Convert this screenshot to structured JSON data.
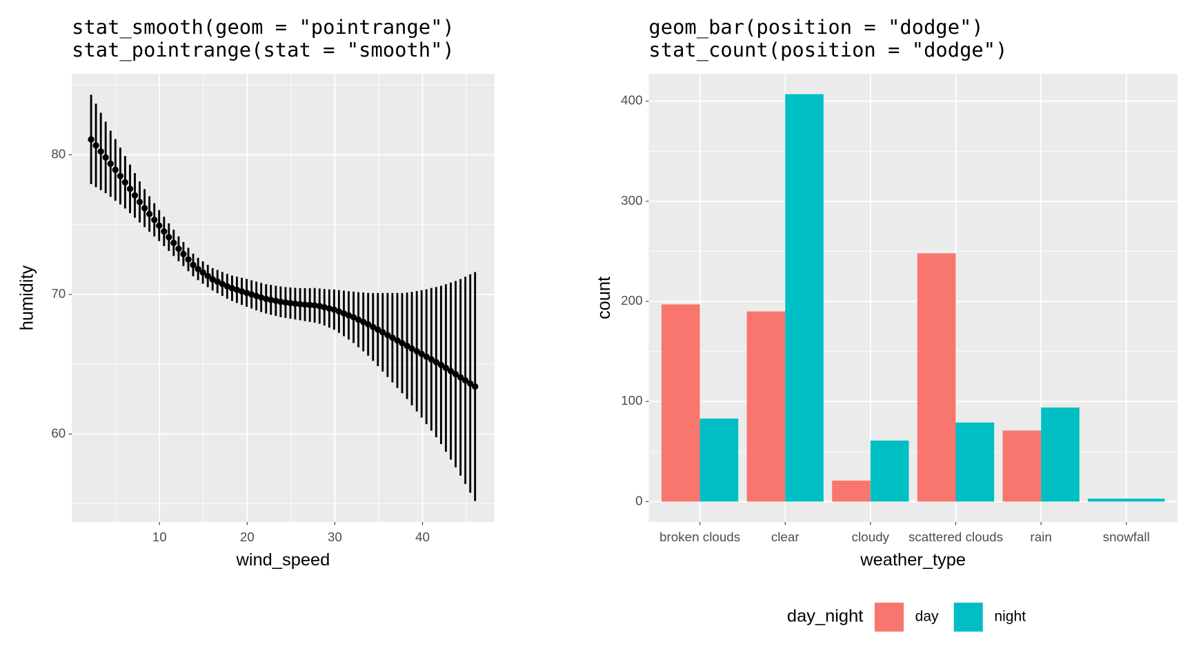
{
  "chart_data": [
    {
      "type": "pointrange",
      "title": [
        "stat_smooth(geom = \"pointrange\")",
        "stat_pointrange(stat = \"smooth\")"
      ],
      "x_label": "wind_speed",
      "y_label": "humidity",
      "color": "#000000",
      "xlim": [
        0,
        48.2
      ],
      "ylim": [
        53.7,
        85.8
      ],
      "xticks": [
        10,
        20,
        30,
        40
      ],
      "yticks": [
        60,
        70,
        80
      ],
      "minor_xticks": [
        5,
        15,
        25,
        35,
        45
      ],
      "minor_yticks": [
        55,
        65,
        75,
        85
      ],
      "grid": true,
      "x": [
        2.2,
        2.75,
        3.31,
        3.86,
        4.42,
        4.97,
        5.53,
        6.08,
        6.64,
        7.19,
        7.74,
        8.3,
        8.85,
        9.41,
        9.96,
        10.52,
        11.07,
        11.62,
        12.18,
        12.73,
        13.29,
        13.84,
        14.4,
        14.95,
        15.51,
        16.06,
        16.61,
        17.17,
        17.72,
        18.28,
        18.83,
        19.39,
        19.94,
        20.5,
        21.05,
        21.6,
        22.16,
        22.71,
        23.27,
        23.82,
        24.38,
        24.93,
        25.48,
        26.04,
        26.59,
        27.15,
        27.7,
        28.26,
        28.81,
        29.37,
        29.92,
        30.47,
        31.03,
        31.58,
        32.14,
        32.69,
        33.25,
        33.8,
        34.36,
        34.91,
        35.46,
        36.02,
        36.57,
        37.13,
        37.68,
        38.24,
        38.79,
        39.35,
        39.9,
        40.45,
        41.01,
        41.56,
        42.12,
        42.67,
        43.23,
        43.78,
        44.34,
        44.89,
        45.45,
        46.0
      ],
      "y": [
        81.1,
        80.67,
        80.24,
        79.81,
        79.36,
        78.92,
        78.48,
        78.03,
        77.56,
        77.09,
        76.62,
        76.18,
        75.76,
        75.34,
        74.93,
        74.51,
        74.1,
        73.69,
        73.27,
        72.89,
        72.5,
        72.11,
        71.82,
        71.57,
        71.32,
        71.08,
        70.92,
        70.75,
        70.58,
        70.44,
        70.33,
        70.22,
        70.11,
        70.0,
        69.89,
        69.78,
        69.68,
        69.61,
        69.54,
        69.47,
        69.42,
        69.38,
        69.34,
        69.3,
        69.27,
        69.24,
        69.22,
        69.16,
        69.08,
        68.99,
        68.91,
        68.78,
        68.64,
        68.5,
        68.36,
        68.19,
        68.03,
        67.86,
        67.67,
        67.48,
        67.29,
        67.09,
        66.9,
        66.7,
        66.51,
        66.32,
        66.12,
        65.93,
        65.74,
        65.54,
        65.35,
        65.15,
        64.95,
        64.73,
        64.51,
        64.29,
        64.06,
        63.84,
        63.62,
        63.4
      ],
      "ymin": [
        77.9,
        77.68,
        77.47,
        77.25,
        76.99,
        76.71,
        76.44,
        76.15,
        75.82,
        75.49,
        75.15,
        74.82,
        74.49,
        74.15,
        73.82,
        73.46,
        73.11,
        72.75,
        72.38,
        72.03,
        71.66,
        71.3,
        71.02,
        70.77,
        70.52,
        70.28,
        70.09,
        69.89,
        69.69,
        69.53,
        69.39,
        69.25,
        69.11,
        68.99,
        68.86,
        68.74,
        68.63,
        68.54,
        68.46,
        68.37,
        68.32,
        68.26,
        68.21,
        68.15,
        68.09,
        68.03,
        67.98,
        67.9,
        67.77,
        67.62,
        67.47,
        67.25,
        67.01,
        66.77,
        66.52,
        66.22,
        65.92,
        65.61,
        65.24,
        64.86,
        64.48,
        64.08,
        63.7,
        63.3,
        62.92,
        62.51,
        62.06,
        61.62,
        61.18,
        60.71,
        60.24,
        59.77,
        59.28,
        58.73,
        58.17,
        57.62,
        57.02,
        56.42,
        55.8,
        55.2
      ],
      "ymax": [
        84.3,
        83.66,
        83.01,
        82.37,
        81.73,
        81.13,
        80.52,
        79.91,
        79.3,
        78.69,
        78.09,
        77.54,
        77.03,
        76.53,
        76.04,
        75.56,
        75.09,
        74.63,
        74.16,
        73.75,
        73.34,
        72.92,
        72.62,
        72.37,
        72.12,
        71.88,
        71.75,
        71.61,
        71.47,
        71.35,
        71.27,
        71.19,
        71.11,
        71.01,
        70.92,
        70.82,
        70.73,
        70.68,
        70.62,
        70.57,
        70.52,
        70.5,
        70.47,
        70.45,
        70.45,
        70.45,
        70.46,
        70.42,
        70.39,
        70.36,
        70.35,
        70.31,
        70.27,
        70.23,
        70.2,
        70.16,
        70.14,
        70.11,
        70.1,
        70.1,
        70.1,
        70.1,
        70.1,
        70.1,
        70.1,
        70.13,
        70.18,
        70.24,
        70.3,
        70.37,
        70.46,
        70.53,
        70.62,
        70.73,
        70.85,
        70.96,
        71.1,
        71.26,
        71.44,
        71.6
      ]
    },
    {
      "type": "bar",
      "title": [
        "geom_bar(position = \"dodge\")",
        "stat_count(position = \"dodge\")"
      ],
      "x_label": "weather_type",
      "y_label": "count",
      "ylim": [
        -20.35,
        427.35
      ],
      "yticks": [
        0,
        100,
        200,
        300,
        400
      ],
      "minor_yticks": [
        50,
        150,
        250,
        350
      ],
      "grid": true,
      "categories": [
        "broken clouds",
        "clear",
        "cloudy",
        "scattered clouds",
        "rain",
        "snowfall"
      ],
      "series": [
        {
          "name": "day",
          "color": "#F8766D",
          "values": [
            197,
            190,
            21,
            248,
            71,
            null
          ]
        },
        {
          "name": "night",
          "color": "#00BFC4",
          "values": [
            83,
            407,
            61,
            79,
            94,
            3
          ]
        }
      ],
      "legend_title": "day_night",
      "legend_position": "bottom"
    }
  ]
}
